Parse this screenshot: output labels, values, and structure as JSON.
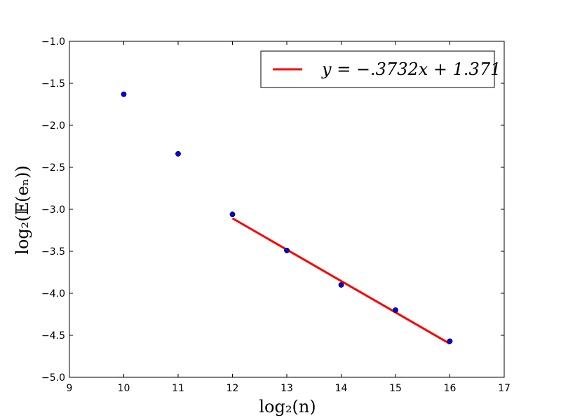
{
  "chart_data": {
    "type": "scatter",
    "title": "",
    "xlabel": "log₂(n)",
    "ylabel": "log₂(𝔼(eₙ))",
    "xlim": [
      9,
      17
    ],
    "ylim": [
      -5.0,
      -1.0
    ],
    "grid": false,
    "legend_position": "top-right",
    "x_ticks": [
      9,
      10,
      11,
      12,
      13,
      14,
      15,
      16,
      17
    ],
    "x_tick_labels": [
      "9",
      "10",
      "11",
      "12",
      "13",
      "14",
      "15",
      "16",
      "17"
    ],
    "y_ticks": [
      -1.0,
      -1.5,
      -2.0,
      -2.5,
      -3.0,
      -3.5,
      -4.0,
      -4.5,
      -5.0
    ],
    "y_tick_labels": [
      "−1.0",
      "−1.5",
      "−2.0",
      "−2.5",
      "−3.0",
      "−3.5",
      "−4.0",
      "−4.5",
      "−5.0"
    ],
    "points": {
      "x": [
        10,
        11,
        12,
        13,
        14,
        15,
        16
      ],
      "y": [
        -1.63,
        -2.34,
        -3.06,
        -3.49,
        -3.9,
        -4.2,
        -4.57
      ],
      "color": "#0000ff"
    },
    "fit_line": {
      "label": "y = −.3732x + 1.371",
      "slope": -0.3732,
      "intercept": 1.371,
      "x_range": [
        12,
        16
      ],
      "color": "#ff0000"
    }
  }
}
